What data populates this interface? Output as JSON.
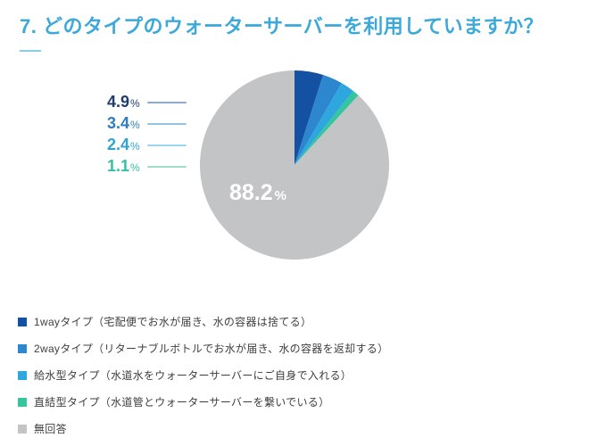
{
  "title": "7. どのタイプのウォーターサーバーを利用していますか？",
  "colors": {
    "title": "#3ca9da",
    "title_underline": "#88cce8",
    "legend_text": "#3f3f3f",
    "background": "#ffffff",
    "inside_label_text": "#ffffff"
  },
  "chart_data": {
    "type": "pie",
    "title": "7. どのタイプのウォーターサーバーを利用していますか？",
    "unit": "%",
    "start_angle": "top",
    "direction": "clockwise",
    "legend_position": "bottom",
    "categories": [
      "1wayタイプ（宅配便でお水が届き、水の容器は捨てる）",
      "2wayタイプ（リターナブルボトルでお水が届き、水の容器を返却する）",
      "給水型タイプ（水道水をウォーターサーバーにご自身で入れる）",
      "直結型タイプ（水道管とウォーターサーバーを繋いでいる）",
      "無回答"
    ],
    "values": [
      4.9,
      3.4,
      2.4,
      1.1,
      88.2
    ],
    "slice_colors": [
      "#1551a3",
      "#2c87cf",
      "#2da7dd",
      "#35c69e",
      "#c3c4c6"
    ],
    "callouts": [
      {
        "value": "4.9",
        "color": "#1f3d6d",
        "line_color": "#8fa9c9"
      },
      {
        "value": "3.4",
        "color": "#2f7dc0",
        "line_color": "#93c5e3"
      },
      {
        "value": "2.4",
        "color": "#2fa3d6",
        "line_color": "#9dd5ec"
      },
      {
        "value": "1.1",
        "color": "#35bfa4",
        "line_color": "#9eddc9"
      }
    ],
    "inside_label": {
      "value": "88.2",
      "unit": "%"
    }
  }
}
